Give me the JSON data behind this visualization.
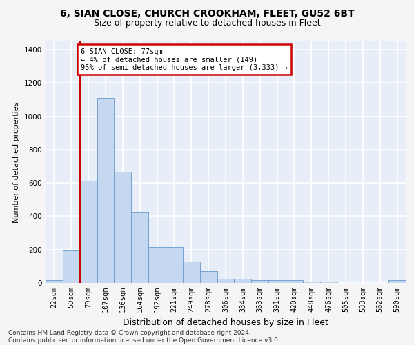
{
  "title1": "6, SIAN CLOSE, CHURCH CROOKHAM, FLEET, GU52 6BT",
  "title2": "Size of property relative to detached houses in Fleet",
  "xlabel": "Distribution of detached houses by size in Fleet",
  "ylabel": "Number of detached properties",
  "bar_color": "#c5d8f0",
  "bar_edge_color": "#6699cc",
  "annotation_box_color": "#cc0000",
  "vline_color": "#cc0000",
  "vline_x_index": 1.5,
  "annotation_text": "6 SIAN CLOSE: 77sqm\n← 4% of detached houses are smaller (149)\n95% of semi-detached houses are larger (3,333) →",
  "categories": [
    "22sqm",
    "50sqm",
    "79sqm",
    "107sqm",
    "136sqm",
    "164sqm",
    "192sqm",
    "221sqm",
    "249sqm",
    "278sqm",
    "306sqm",
    "334sqm",
    "363sqm",
    "391sqm",
    "420sqm",
    "448sqm",
    "476sqm",
    "505sqm",
    "533sqm",
    "562sqm",
    "590sqm"
  ],
  "values": [
    15,
    195,
    615,
    1110,
    665,
    425,
    215,
    215,
    130,
    70,
    25,
    25,
    18,
    18,
    15,
    10,
    10,
    0,
    0,
    0,
    15
  ],
  "ylim": [
    0,
    1450
  ],
  "yticks": [
    0,
    200,
    400,
    600,
    800,
    1000,
    1200,
    1400
  ],
  "footnote": "Contains HM Land Registry data © Crown copyright and database right 2024.\nContains public sector information licensed under the Open Government Licence v3.0.",
  "fig_facecolor": "#f5f5f5",
  "bg_color": "#e8eef8",
  "grid_color": "#ffffff",
  "title1_fontsize": 10,
  "title2_fontsize": 9,
  "xlabel_fontsize": 9,
  "ylabel_fontsize": 8,
  "tick_fontsize": 7.5,
  "annot_fontsize": 7.5,
  "footnote_fontsize": 6.5
}
